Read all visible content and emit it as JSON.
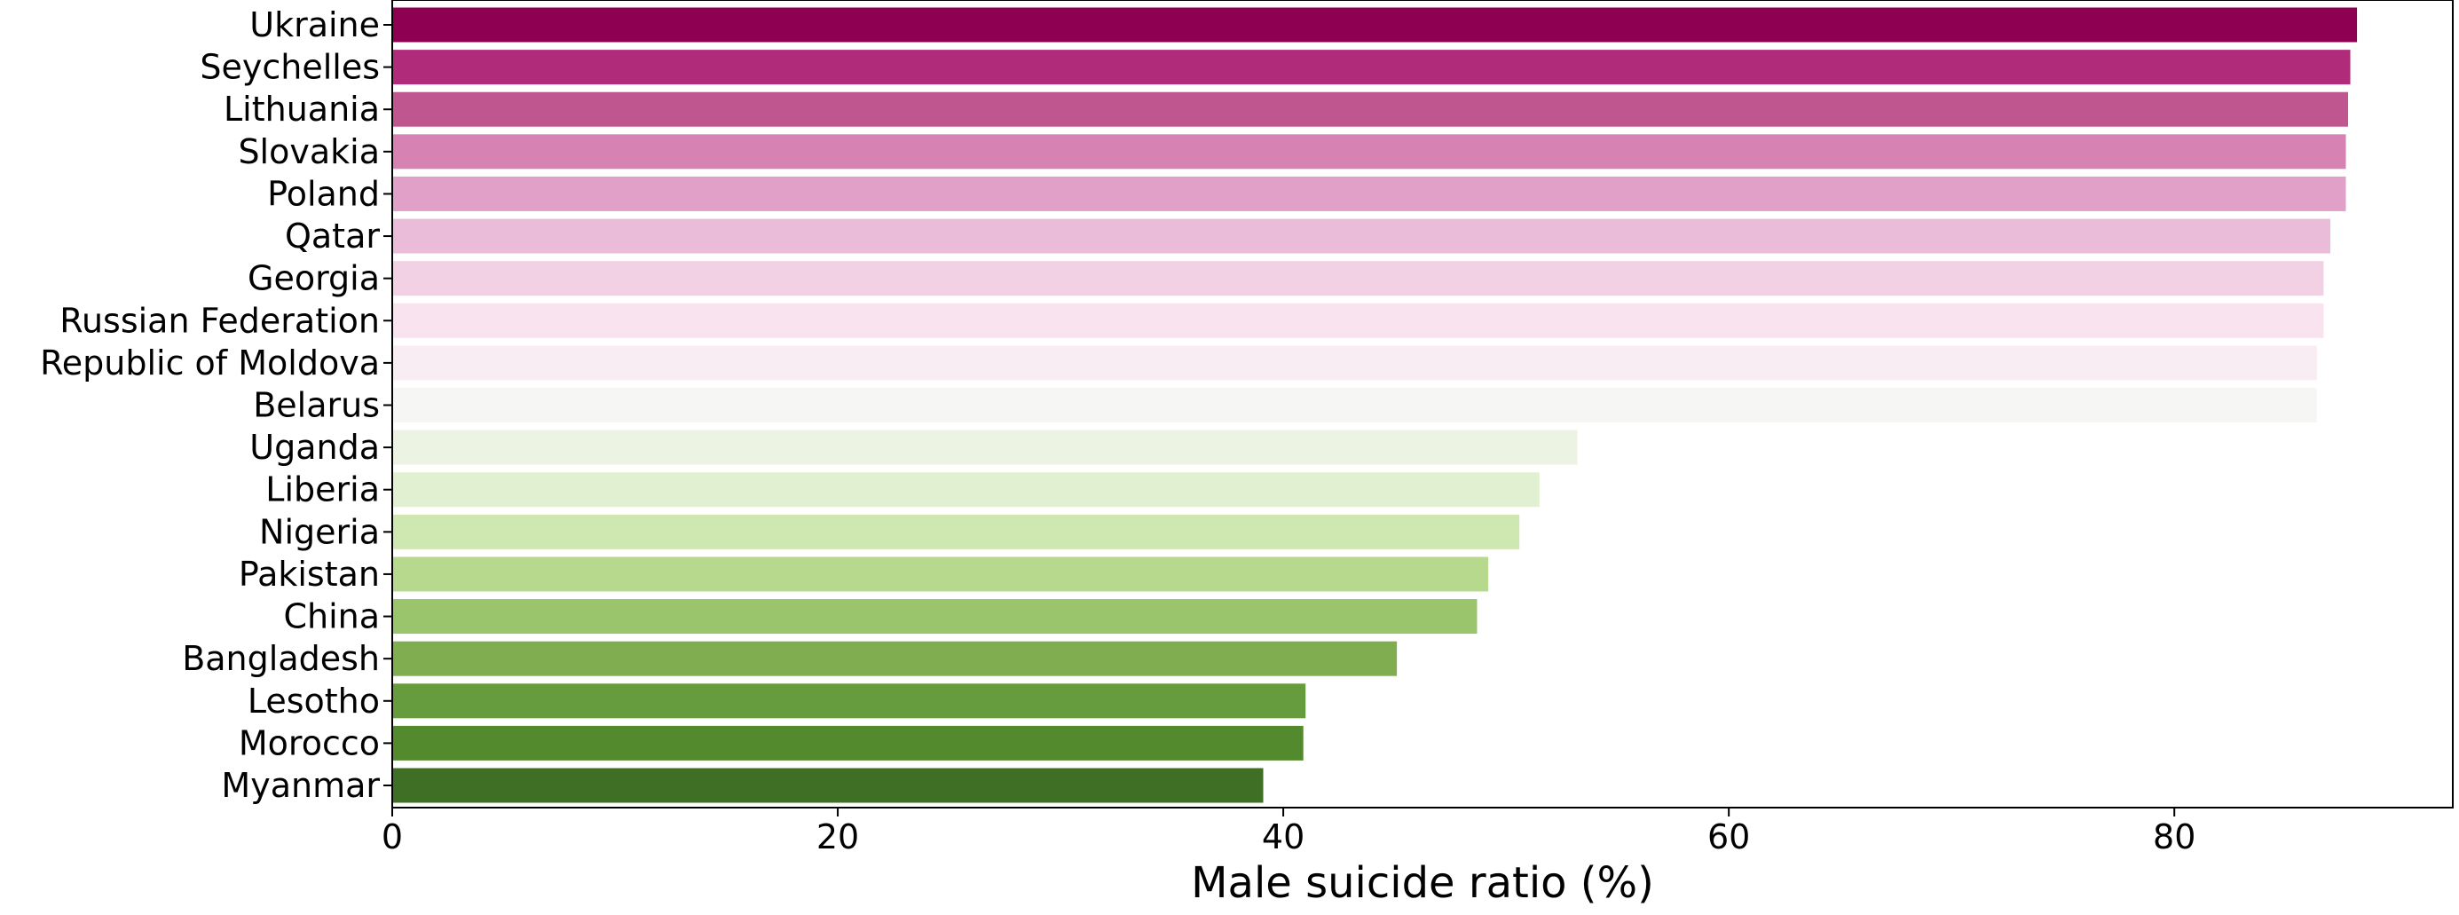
{
  "chart_data": {
    "type": "bar",
    "orientation": "horizontal",
    "title": "",
    "xlabel": "Male suicide ratio (%)",
    "ylabel": "",
    "xlim": [
      0,
      92.5
    ],
    "xticks": [
      "0",
      "20",
      "40",
      "60",
      "80"
    ],
    "xtick_values": [
      0,
      20,
      40,
      60,
      80
    ],
    "grid": false,
    "legend": "none",
    "categories": [
      "Ukraine",
      "Seychelles",
      "Lithuania",
      "Slovakia",
      "Poland",
      "Qatar",
      "Georgia",
      "Russian Federation",
      "Republic of Moldova",
      "Belarus",
      "Uganda",
      "Liberia",
      "Nigeria",
      "Pakistan",
      "China",
      "Bangladesh",
      "Lesotho",
      "Morocco",
      "Myanmar"
    ],
    "values": [
      88.2,
      87.9,
      87.8,
      87.7,
      87.7,
      87.0,
      86.7,
      86.7,
      86.4,
      86.4,
      53.2,
      51.5,
      50.6,
      49.2,
      48.7,
      45.1,
      41.0,
      40.9,
      39.1
    ],
    "colors": [
      "#8e0152",
      "#b02c7b",
      "#c0568f",
      "#d683b4",
      "#e1a0c8",
      "#eabcd9",
      "#f3d1e4",
      "#f8e3ef",
      "#f8edf3",
      "#f6f6f4",
      "#ecf3e3",
      "#e1f0d1",
      "#cfe8b2",
      "#b7d98e",
      "#9bc56d",
      "#80ad4f",
      "#669c3d",
      "#538a2e",
      "#3f6f25"
    ]
  }
}
